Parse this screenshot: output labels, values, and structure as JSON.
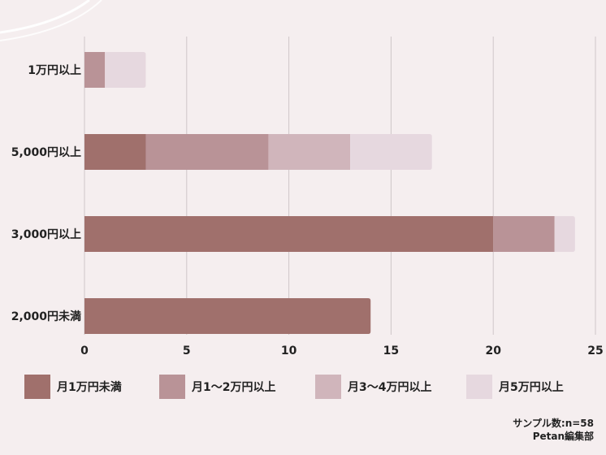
{
  "chart_data": {
    "type": "bar",
    "orientation": "horizontal",
    "stacked": true,
    "categories": [
      "1万円以上",
      "5,000円以上",
      "3,000円以上",
      "2,000円未満"
    ],
    "series": [
      {
        "name": "月1万円未満",
        "color": "#a0706c",
        "values": [
          0,
          3,
          20,
          14
        ]
      },
      {
        "name": "月1〜2万円以上",
        "color": "#b99397",
        "values": [
          1,
          6,
          3,
          0
        ]
      },
      {
        "name": "月3〜4万円以上",
        "color": "#d0b5bb",
        "values": [
          0,
          4,
          0,
          0
        ]
      },
      {
        "name": "月5万円以上",
        "color": "#e6d8df",
        "values": [
          2,
          4,
          1,
          0
        ]
      }
    ],
    "xlim": [
      0,
      25
    ],
    "xticks": [
      0,
      5,
      10,
      15,
      20,
      25
    ],
    "grid": true,
    "legend_position": "bottom"
  },
  "notes": {
    "sample": "サンプル数:n=58",
    "source": "Petan編集部"
  },
  "colors": {
    "background": "#f5eeef",
    "gridline": "#cfc6c8",
    "decoration": "#ffffff"
  }
}
